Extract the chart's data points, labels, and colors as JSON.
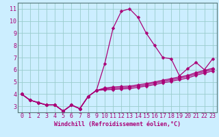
{
  "xlabel": "Windchill (Refroidissement éolien,°C)",
  "background_color": "#cceeff",
  "line_color": "#aa0077",
  "grid_color": "#99cccc",
  "x_hours": [
    0,
    1,
    2,
    3,
    4,
    5,
    6,
    7,
    8,
    9,
    10,
    11,
    12,
    13,
    14,
    15,
    16,
    17,
    18,
    19,
    20,
    21,
    22,
    23
  ],
  "series1": [
    4.0,
    3.5,
    3.3,
    3.1,
    3.1,
    2.6,
    3.1,
    2.8,
    3.8,
    4.3,
    6.5,
    9.4,
    10.8,
    11.0,
    10.3,
    9.0,
    8.0,
    7.0,
    6.9,
    5.5,
    6.1,
    6.6,
    6.0,
    6.9
  ],
  "series2": [
    4.0,
    3.5,
    3.3,
    3.1,
    3.1,
    2.6,
    3.1,
    2.8,
    3.8,
    4.3,
    4.35,
    4.38,
    4.42,
    4.45,
    4.55,
    4.65,
    4.78,
    4.92,
    5.05,
    5.18,
    5.32,
    5.55,
    5.72,
    5.9
  ],
  "series3": [
    4.0,
    3.5,
    3.3,
    3.1,
    3.1,
    2.6,
    3.1,
    2.8,
    3.8,
    4.3,
    4.42,
    4.48,
    4.52,
    4.56,
    4.66,
    4.76,
    4.9,
    5.04,
    5.17,
    5.3,
    5.44,
    5.67,
    5.84,
    6.02
  ],
  "series4": [
    4.0,
    3.5,
    3.3,
    3.1,
    3.1,
    2.6,
    3.1,
    2.8,
    3.8,
    4.3,
    4.5,
    4.58,
    4.62,
    4.66,
    4.76,
    4.86,
    5.0,
    5.14,
    5.27,
    5.4,
    5.54,
    5.77,
    5.94,
    6.12
  ],
  "ylim": [
    2.5,
    11.5
  ],
  "xlim": [
    -0.5,
    23.5
  ],
  "yticks": [
    3,
    4,
    5,
    6,
    7,
    8,
    9,
    10,
    11
  ],
  "xticks": [
    0,
    1,
    2,
    3,
    4,
    5,
    6,
    7,
    8,
    9,
    10,
    11,
    12,
    13,
    14,
    15,
    16,
    17,
    18,
    19,
    20,
    21,
    22,
    23
  ],
  "marker": "D",
  "marker_size": 2.5,
  "line_width": 0.9,
  "xlabel_fontsize": 6.0,
  "tick_fontsize": 6.0
}
